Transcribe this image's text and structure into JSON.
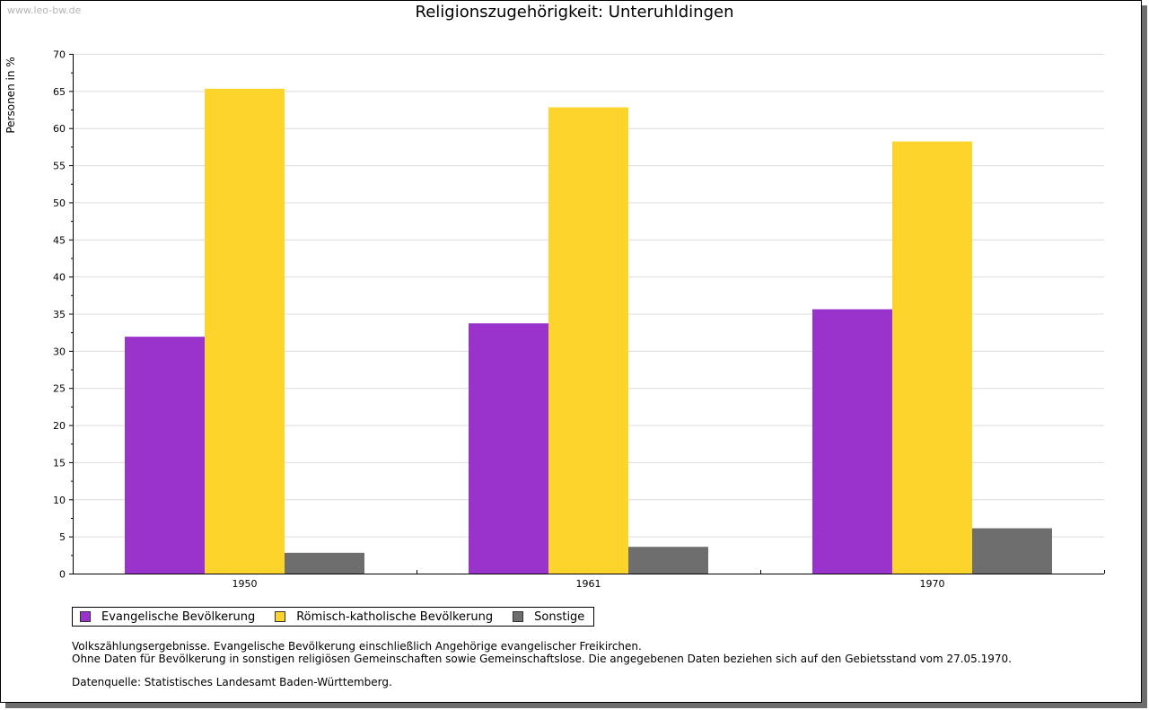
{
  "watermark": "www.leo-bw.de",
  "chart_data": {
    "type": "bar",
    "title": "Religionszugehörigkeit: Unteruhldingen",
    "xlabel": "",
    "ylabel": "Personen in %",
    "ylim": [
      0,
      70
    ],
    "yticks": [
      0,
      5,
      10,
      15,
      20,
      25,
      30,
      35,
      40,
      45,
      50,
      55,
      60,
      65,
      70
    ],
    "categories": [
      "1950",
      "1961",
      "1970"
    ],
    "grid": true,
    "legend_position": "bottom-left",
    "series": [
      {
        "name": "Evangelische Bevölkerung",
        "color": "#9933cc",
        "values": [
          31.9,
          33.7,
          35.6
        ]
      },
      {
        "name": "Römisch-katholische Bevölkerung",
        "color": "#fcd42c",
        "values": [
          65.3,
          62.8,
          58.2
        ]
      },
      {
        "name": "Sonstige",
        "color": "#6e6e6e",
        "values": [
          2.8,
          3.6,
          6.1
        ]
      }
    ]
  },
  "notes": {
    "line1": "Volkszählungsergebnisse. Evangelische Bevölkerung einschließlich Angehörige evangelischer Freikirchen.",
    "line2": "Ohne Daten für Bevölkerung in sonstigen religiösen Gemeinschaften sowie Gemeinschaftslose. Die angegebenen Daten beziehen sich auf den Gebietsstand vom 27.05.1970.",
    "source": "Datenquelle: Statistisches Landesamt Baden-Württemberg."
  }
}
